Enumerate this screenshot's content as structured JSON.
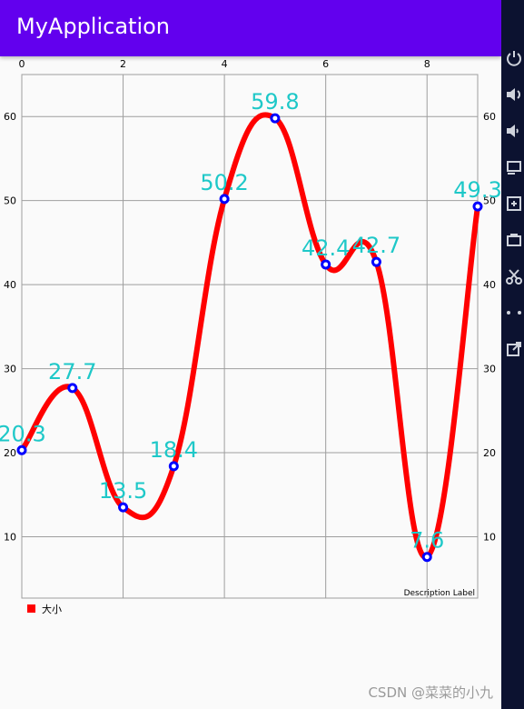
{
  "app": {
    "title": "MyApplication",
    "watermark": "CSDN @菜菜的小九"
  },
  "toolbar": {
    "icons": [
      "power-icon",
      "volume-up-icon",
      "volume-down-icon",
      "rotate-icon",
      "screenshot-icon",
      "camera-icon",
      "scissors-icon",
      "more-icon",
      "external-link-icon"
    ]
  },
  "chart_data": {
    "type": "line",
    "x": [
      0,
      1,
      2,
      3,
      4,
      5,
      6,
      7,
      8,
      9
    ],
    "series": [
      {
        "name": "大小",
        "values": [
          20.3,
          27.7,
          13.5,
          18.4,
          50.2,
          59.8,
          42.4,
          42.7,
          7.6,
          49.3
        ],
        "color": "#ff0000"
      }
    ],
    "value_labels": [
      "20.3",
      "27.7",
      "13.5",
      "18.4",
      "50.2",
      "59.8",
      "42.4",
      "42.7",
      "7.6",
      "49.3"
    ],
    "x_ticks": [
      "0",
      "2",
      "4",
      "6",
      "8"
    ],
    "y_ticks": [
      "10",
      "20",
      "30",
      "40",
      "50",
      "60"
    ],
    "xlim": [
      0,
      9
    ],
    "ylim": [
      2.7,
      65
    ],
    "grid": true,
    "description": "Description Label",
    "legend_position": "bottom-left",
    "value_label_color": "#1ec8c8",
    "point_color": "#0000ff",
    "grid_color": "#9e9e9e"
  }
}
